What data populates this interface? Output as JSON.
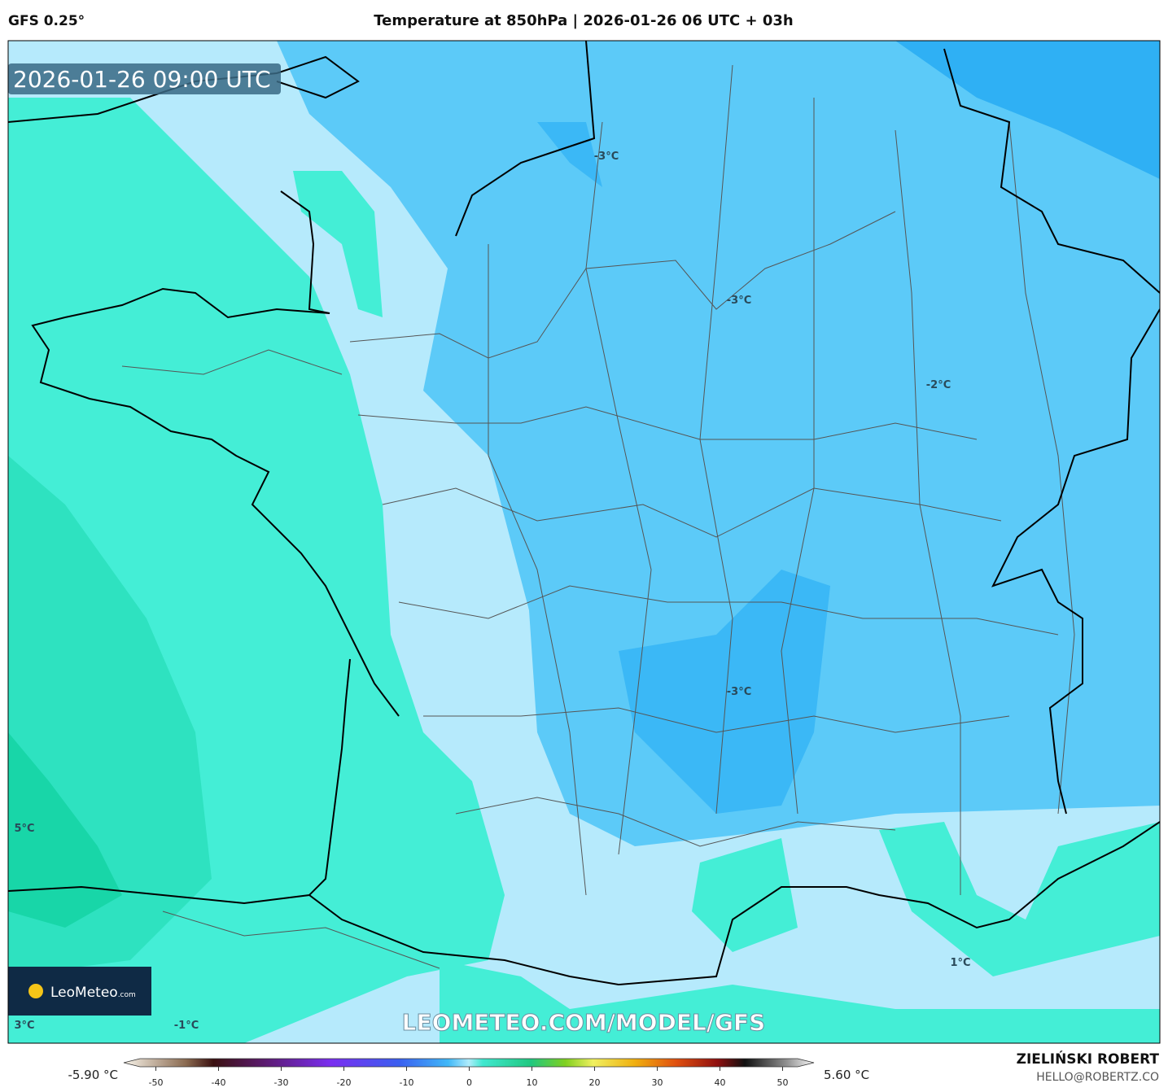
{
  "header": {
    "model": "GFS 0.25°",
    "title": "Temperature at 850hPa | 2026-01-26 06 UTC + 03h"
  },
  "timestamp": "2026-01-26 09:00 UTC",
  "contour_labels": [
    "-3°C",
    "-3°C",
    "-3°C",
    "-2°C",
    "5°C",
    "1°C",
    "3°C",
    "-1°C"
  ],
  "logo": {
    "name": "LeoMeteo",
    "suffix": ".com"
  },
  "watermark": "LEOMETEO.COM/MODEL/GFS",
  "colorbar": {
    "min_label": "-5.90 °C",
    "max_label": "5.60 °C",
    "range": [
      -55,
      55
    ],
    "ticks": [
      -50,
      -40,
      -30,
      -20,
      -10,
      0,
      10,
      20,
      30,
      40,
      50
    ]
  },
  "author": {
    "name": "ZIELIŃSKI ROBERT",
    "email": "HELLO@ROBERTZ.CO"
  }
}
